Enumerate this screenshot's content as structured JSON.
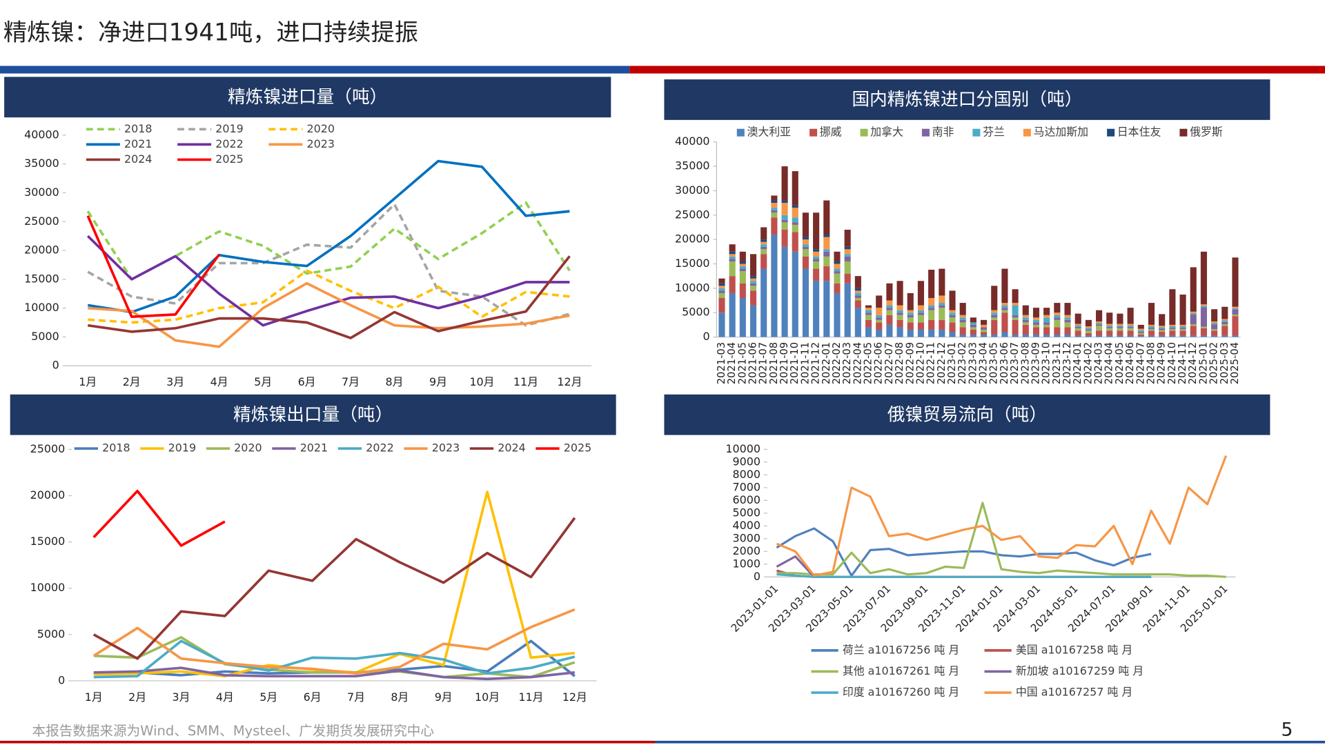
{
  "title": "精炼镍：净进口1941吨，进口持续提振",
  "source": "本报告数据来源为Wind、SMM、Mysteel、广发期货发展研究中心",
  "page_number": "5",
  "chart_data": [
    {
      "type": "line",
      "title": "精炼镍进口量（吨）",
      "categories": [
        "1月",
        "2月",
        "3月",
        "4月",
        "5月",
        "6月",
        "7月",
        "8月",
        "9月",
        "10月",
        "11月",
        "12月"
      ],
      "ylim": [
        0,
        40000
      ],
      "yticks": [
        0,
        5000,
        10000,
        15000,
        20000,
        25000,
        30000,
        35000,
        40000
      ],
      "series": [
        {
          "name": "2018",
          "color": "#92d050",
          "dash": true,
          "values": [
            26800,
            15000,
            19000,
            23300,
            20800,
            16000,
            17200,
            23800,
            18500,
            23000,
            28300,
            16500
          ]
        },
        {
          "name": "2019",
          "color": "#a5a5a5",
          "dash": true,
          "values": [
            16300,
            12000,
            10800,
            17800,
            17800,
            21000,
            20500,
            28000,
            13000,
            12000,
            7000,
            9000
          ]
        },
        {
          "name": "2020",
          "color": "#ffc000",
          "dash": true,
          "values": [
            8000,
            7500,
            8000,
            10000,
            11000,
            16500,
            13000,
            10000,
            13700,
            8500,
            12800,
            12000
          ]
        },
        {
          "name": "2021",
          "color": "#0070c0",
          "values": [
            10500,
            9300,
            12000,
            19200,
            18000,
            17300,
            22500,
            29000,
            35500,
            34500,
            26000,
            26800
          ]
        },
        {
          "name": "2022",
          "color": "#7030a0",
          "values": [
            22500,
            15000,
            19000,
            12500,
            7000,
            9500,
            11800,
            12000,
            10000,
            12000,
            14500,
            14500
          ]
        },
        {
          "name": "2023",
          "color": "#f79646",
          "values": [
            10000,
            9500,
            4400,
            3300,
            10000,
            14300,
            10500,
            7000,
            6500,
            6800,
            7300,
            8700
          ]
        },
        {
          "name": "2024",
          "color": "#943634",
          "values": [
            7000,
            5900,
            6500,
            8200,
            8200,
            7500,
            4800,
            9300,
            6000,
            7800,
            9400,
            19000
          ]
        },
        {
          "name": "2025",
          "color": "#ff0000",
          "values": [
            26000,
            8500,
            8900,
            19300,
            null,
            null,
            null,
            null,
            null,
            null,
            null,
            null
          ]
        }
      ]
    },
    {
      "type": "bar",
      "stacked": true,
      "title": "国内精炼镍进口分国别（吨）",
      "categories": [
        "2021-03",
        "2021-04",
        "2021-05",
        "2021-06",
        "2021-07",
        "2021-08",
        "2021-09",
        "2021-10",
        "2021-11",
        "2021-12",
        "2022-01",
        "2022-02",
        "2022-03",
        "2022-04",
        "2022-05",
        "2022-06",
        "2022-07",
        "2022-08",
        "2022-09",
        "2022-10",
        "2022-11",
        "2022-12",
        "2023-01",
        "2023-02",
        "2023-03",
        "2023-04",
        "2023-05",
        "2023-06",
        "2023-07",
        "2023-08",
        "2023-09",
        "2023-10",
        "2023-11",
        "2023-12",
        "2024-01",
        "2024-02",
        "2024-03",
        "2024-04",
        "2024-05",
        "2024-06",
        "2024-07",
        "2024-08",
        "2024-09",
        "2024-10",
        "2024-11",
        "2024-12",
        "2025-01",
        "2025-02",
        "2025-03",
        "2025-04"
      ],
      "ylim": [
        0,
        40000
      ],
      "yticks": [
        0,
        5000,
        10000,
        15000,
        20000,
        25000,
        30000,
        35000,
        40000
      ],
      "series": [
        {
          "name": "澳大利亚",
          "color": "#4f81bd",
          "values": [
            5000,
            9000,
            8000,
            6500,
            14000,
            21000,
            18500,
            17500,
            14000,
            11500,
            11500,
            9000,
            11000,
            6000,
            2000,
            1500,
            2500,
            2000,
            1500,
            1500,
            1500,
            1500,
            1000,
            500,
            500,
            500,
            500,
            1000,
            500,
            500,
            500,
            500,
            500,
            500,
            300,
            300,
            300,
            300,
            300,
            300,
            200,
            300,
            300,
            300,
            300,
            300,
            300,
            300,
            300,
            300
          ]
        },
        {
          "name": "挪威",
          "color": "#c0504d",
          "values": [
            3000,
            3500,
            3000,
            3000,
            3000,
            3500,
            3500,
            4000,
            2500,
            2500,
            3000,
            2000,
            2000,
            1500,
            1500,
            1500,
            2000,
            1500,
            1500,
            1500,
            2000,
            2000,
            2000,
            1500,
            1000,
            500,
            3000,
            4000,
            3000,
            2000,
            1500,
            1500,
            1500,
            1500,
            1000,
            500,
            1000,
            1000,
            1000,
            1000,
            300,
            1000,
            800,
            1000,
            1000,
            2000,
            1500,
            1000,
            2000,
            4000
          ]
        },
        {
          "name": "加拿大",
          "color": "#9bbb59",
          "values": [
            1000,
            3000,
            2500,
            1000,
            1000,
            1000,
            1500,
            1500,
            1500,
            1500,
            2000,
            2000,
            2500,
            500,
            1000,
            500,
            1000,
            1000,
            1000,
            1500,
            2000,
            2500,
            1000,
            1000,
            500,
            500,
            500,
            500,
            500,
            500,
            500,
            500,
            1500,
            1000,
            500,
            500,
            1000,
            500,
            500,
            500,
            300,
            300,
            300,
            300,
            300,
            300,
            300,
            300,
            300,
            300
          ]
        },
        {
          "name": "南非",
          "color": "#8064a2",
          "values": [
            500,
            500,
            500,
            500,
            500,
            500,
            500,
            500,
            500,
            500,
            1000,
            500,
            1000,
            500,
            500,
            500,
            500,
            500,
            500,
            500,
            500,
            500,
            500,
            500,
            500,
            500,
            500,
            500,
            500,
            500,
            500,
            500,
            500,
            500,
            300,
            300,
            300,
            300,
            300,
            300,
            300,
            300,
            300,
            300,
            300,
            2000,
            4000,
            1000,
            500,
            1000
          ]
        },
        {
          "name": "芬兰",
          "color": "#4bacc6",
          "values": [
            500,
            500,
            500,
            500,
            500,
            500,
            1000,
            1000,
            500,
            500,
            500,
            500,
            500,
            500,
            500,
            500,
            500,
            500,
            500,
            500,
            500,
            500,
            500,
            500,
            500,
            0,
            500,
            500,
            2000,
            500,
            500,
            1000,
            500,
            500,
            300,
            300,
            300,
            300,
            300,
            300,
            300,
            300,
            300,
            300,
            300,
            300,
            300,
            300,
            300,
            300
          ]
        },
        {
          "name": "马达加斯加",
          "color": "#f79646",
          "values": [
            500,
            500,
            500,
            500,
            500,
            1000,
            2500,
            2000,
            1000,
            1000,
            2500,
            1000,
            1000,
            500,
            500,
            1500,
            1000,
            1000,
            500,
            1000,
            1500,
            1500,
            500,
            500,
            0,
            500,
            500,
            500,
            500,
            500,
            500,
            500,
            500,
            500,
            300,
            300,
            300,
            300,
            300,
            300,
            300,
            300,
            300,
            300,
            300,
            300,
            300,
            300,
            300,
            300
          ]
        },
        {
          "name": "日本住友",
          "color": "#1f497d",
          "values": [
            500,
            500,
            500,
            500,
            500,
            500,
            500,
            500,
            500,
            500,
            500,
            500,
            500,
            500,
            0,
            0,
            0,
            0,
            0,
            0,
            0,
            0,
            0,
            0,
            0,
            0,
            0,
            0,
            0,
            0,
            0,
            0,
            0,
            0,
            0,
            0,
            0,
            0,
            0,
            0,
            0,
            0,
            0,
            0,
            0,
            0,
            0,
            0,
            0,
            0
          ]
        },
        {
          "name": "俄罗斯",
          "color": "#772c2a",
          "values": [
            1000,
            1500,
            2000,
            4500,
            2500,
            1000,
            7000,
            7000,
            5000,
            7500,
            7000,
            2000,
            3500,
            2500,
            500,
            2500,
            3500,
            5000,
            3500,
            5000,
            5800,
            5500,
            4000,
            2500,
            1000,
            1000,
            5000,
            7000,
            2800,
            2000,
            2000,
            1500,
            2000,
            2500,
            2100,
            1300,
            2300,
            2300,
            2100,
            3300,
            800,
            4500,
            2400,
            7300,
            6200,
            9100,
            10800,
            2500,
            2500,
            10100
          ]
        }
      ]
    },
    {
      "type": "line",
      "title": "精炼镍出口量（吨）",
      "categories": [
        "1月",
        "2月",
        "3月",
        "4月",
        "5月",
        "6月",
        "7月",
        "8月",
        "9月",
        "10月",
        "11月",
        "12月"
      ],
      "ylim": [
        0,
        25000
      ],
      "yticks": [
        0,
        5000,
        10000,
        15000,
        20000,
        25000
      ],
      "series": [
        {
          "name": "2018",
          "color": "#4a7ebb",
          "values": [
            800,
            900,
            600,
            1000,
            800,
            900,
            900,
            1200,
            1600,
            1000,
            4300,
            500
          ]
        },
        {
          "name": "2019",
          "color": "#ffc000",
          "values": [
            700,
            800,
            1000,
            500,
            1700,
            1200,
            900,
            2900,
            1700,
            20400,
            2500,
            3000
          ]
        },
        {
          "name": "2020",
          "color": "#9bbb59",
          "values": [
            2700,
            2500,
            4700,
            1800,
            1200,
            900,
            900,
            1000,
            400,
            800,
            400,
            2000
          ]
        },
        {
          "name": "2021",
          "color": "#8064a2",
          "values": [
            900,
            1000,
            1400,
            600,
            500,
            500,
            500,
            1100,
            400,
            200,
            400,
            900
          ]
        },
        {
          "name": "2022",
          "color": "#4bacc6",
          "values": [
            400,
            500,
            4300,
            1900,
            1100,
            2500,
            2400,
            3000,
            2300,
            800,
            1400,
            2600
          ]
        },
        {
          "name": "2023",
          "color": "#f79646",
          "values": [
            2700,
            5700,
            2400,
            1900,
            1500,
            1300,
            800,
            1500,
            4000,
            3400,
            5800,
            7700
          ]
        },
        {
          "name": "2024",
          "color": "#943634",
          "values": [
            5000,
            2400,
            7500,
            7000,
            11900,
            10800,
            15300,
            12800,
            10600,
            13800,
            11200,
            17600
          ]
        },
        {
          "name": "2025",
          "color": "#ff0000",
          "values": [
            15500,
            20500,
            14600,
            17200,
            null,
            null,
            null,
            null,
            null,
            null,
            null,
            null
          ]
        }
      ]
    },
    {
      "type": "line",
      "title": "俄镍贸易流向（吨）",
      "categories": [
        "2023-01-01",
        null,
        "2023-03-01",
        null,
        "2023-05-01",
        null,
        "2023-07-01",
        null,
        "2023-09-01",
        null,
        "2023-11-01",
        null,
        "2024-01-01",
        null,
        "2024-03-01",
        null,
        "2024-05-01",
        null,
        "2024-07-01",
        null,
        "2024-09-01",
        null,
        "2024-11-01",
        null,
        "2025-01-01"
      ],
      "ylim": [
        0,
        10000
      ],
      "yticks": [
        0,
        1000,
        2000,
        3000,
        4000,
        5000,
        6000,
        7000,
        8000,
        9000,
        10000
      ],
      "series": [
        {
          "name": "荷兰 a10167256 吨 月",
          "color": "#4f81bd",
          "values": [
            2300,
            3200,
            3800,
            2800,
            100,
            2100,
            2200,
            1700,
            1800,
            1900,
            2000,
            2000,
            1700,
            1600,
            1800,
            1800,
            1900,
            1300,
            900,
            1500,
            1800,
            null,
            null,
            null,
            null
          ]
        },
        {
          "name": "美国 a10167258 吨 月",
          "color": "#c0504d",
          "values": [
            500,
            100,
            0,
            0,
            0,
            0,
            0,
            0,
            0,
            0,
            0,
            0,
            0,
            0,
            0,
            0,
            0,
            0,
            0,
            0,
            0,
            null,
            null,
            null,
            null
          ]
        },
        {
          "name": "其他 a10167261 吨 月",
          "color": "#9bbb59",
          "values": [
            300,
            300,
            200,
            200,
            1900,
            300,
            600,
            200,
            300,
            800,
            700,
            5800,
            600,
            400,
            300,
            500,
            400,
            300,
            200,
            200,
            200,
            200,
            100,
            100,
            0
          ]
        },
        {
          "name": "新加坡 a10167259 吨 月",
          "color": "#8064a2",
          "values": [
            800,
            1600,
            0,
            null,
            null,
            null,
            null,
            null,
            null,
            null,
            null,
            null,
            null,
            null,
            null,
            null,
            null,
            null,
            null,
            null,
            null,
            null,
            null,
            null,
            null
          ]
        },
        {
          "name": "印度 a10167260 吨 月",
          "color": "#4bacc6",
          "values": [
            200,
            100,
            0,
            0,
            0,
            0,
            0,
            0,
            0,
            0,
            0,
            0,
            0,
            0,
            0,
            0,
            0,
            0,
            0,
            0,
            0,
            null,
            null,
            null,
            null
          ]
        },
        {
          "name": "中国 a10167257 吨 月",
          "color": "#f79646",
          "values": [
            2600,
            2000,
            100,
            400,
            7000,
            6300,
            3200,
            3400,
            2900,
            3300,
            3700,
            4000,
            2900,
            3200,
            1600,
            1500,
            2500,
            2400,
            4000,
            1000,
            5200,
            2600,
            7000,
            5700,
            9500
          ]
        }
      ]
    }
  ]
}
